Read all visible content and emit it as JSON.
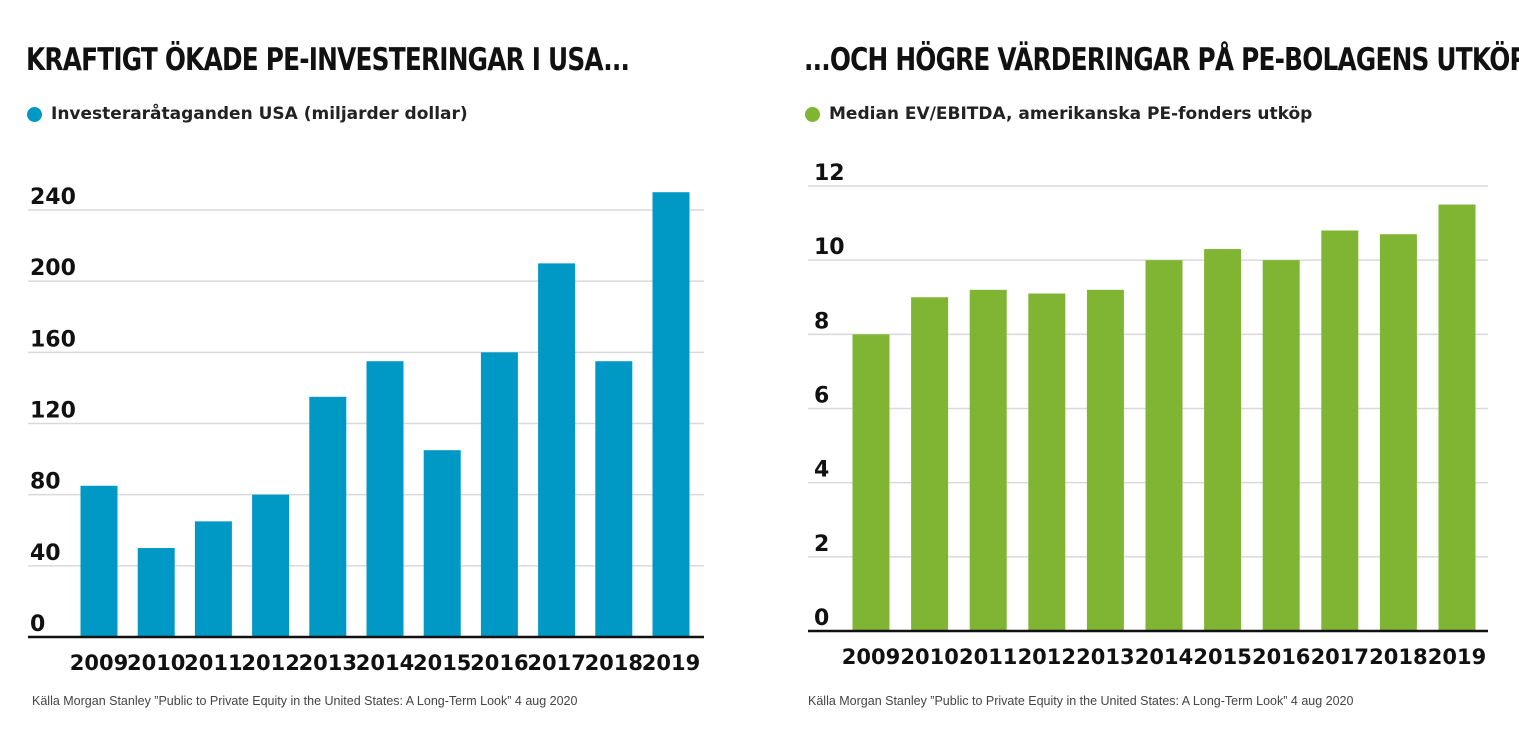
{
  "panels": [
    {
      "title": "KRAFTIGT ÖKADE PE-INVESTERINGAR I USA...",
      "legend": "Investeraråtaganden USA (miljarder dollar)",
      "source": "Källa Morgan Stanley ”Public to Private Equity in the United States: A Long-Term Look” 4 aug 2020"
    },
    {
      "title": "...OCH HÖGRE VÄRDERINGAR PÅ PE-BOLAGENS UTKÖP",
      "legend": "Median EV/EBITDA, amerikanska PE-fonders utköp",
      "source": "Källa Morgan Stanley ”Public to Private Equity in the United States: A Long-Term Look” 4 aug 2020"
    }
  ],
  "chart_data": [
    {
      "type": "bar",
      "title": "KRAFTIGT ÖKADE PE-INVESTERINGAR I USA...",
      "categories": [
        "2009",
        "2010",
        "2011",
        "2012",
        "2013",
        "2014",
        "2015",
        "2016",
        "2017",
        "2018",
        "2019"
      ],
      "series": [
        {
          "name": "Investeraråtaganden USA (miljarder dollar)",
          "values": [
            85,
            50,
            65,
            80,
            135,
            155,
            105,
            160,
            210,
            155,
            250
          ]
        }
      ],
      "yticks": [
        0,
        40,
        80,
        120,
        160,
        200,
        240
      ],
      "ylim": [
        0,
        250
      ],
      "grid": true,
      "legend_position": "top-left",
      "color": "#0099c6"
    },
    {
      "type": "bar",
      "title": "...OCH HÖGRE VÄRDERINGAR PÅ PE-BOLAGENS UTKÖP",
      "categories": [
        "2009",
        "2010",
        "2011",
        "2012",
        "2013",
        "2014",
        "2015",
        "2016",
        "2017",
        "2018",
        "2019"
      ],
      "series": [
        {
          "name": "Median EV/EBITDA, amerikanska PE-fonders utköp",
          "values": [
            8.0,
            9.0,
            9.2,
            9.1,
            9.2,
            10.0,
            10.3,
            10.0,
            10.8,
            10.7,
            11.5
          ]
        }
      ],
      "yticks": [
        0,
        2,
        4,
        6,
        8,
        10,
        12
      ],
      "ylim": [
        0,
        12
      ],
      "grid": true,
      "legend_position": "top-left",
      "color": "#80b533"
    }
  ]
}
